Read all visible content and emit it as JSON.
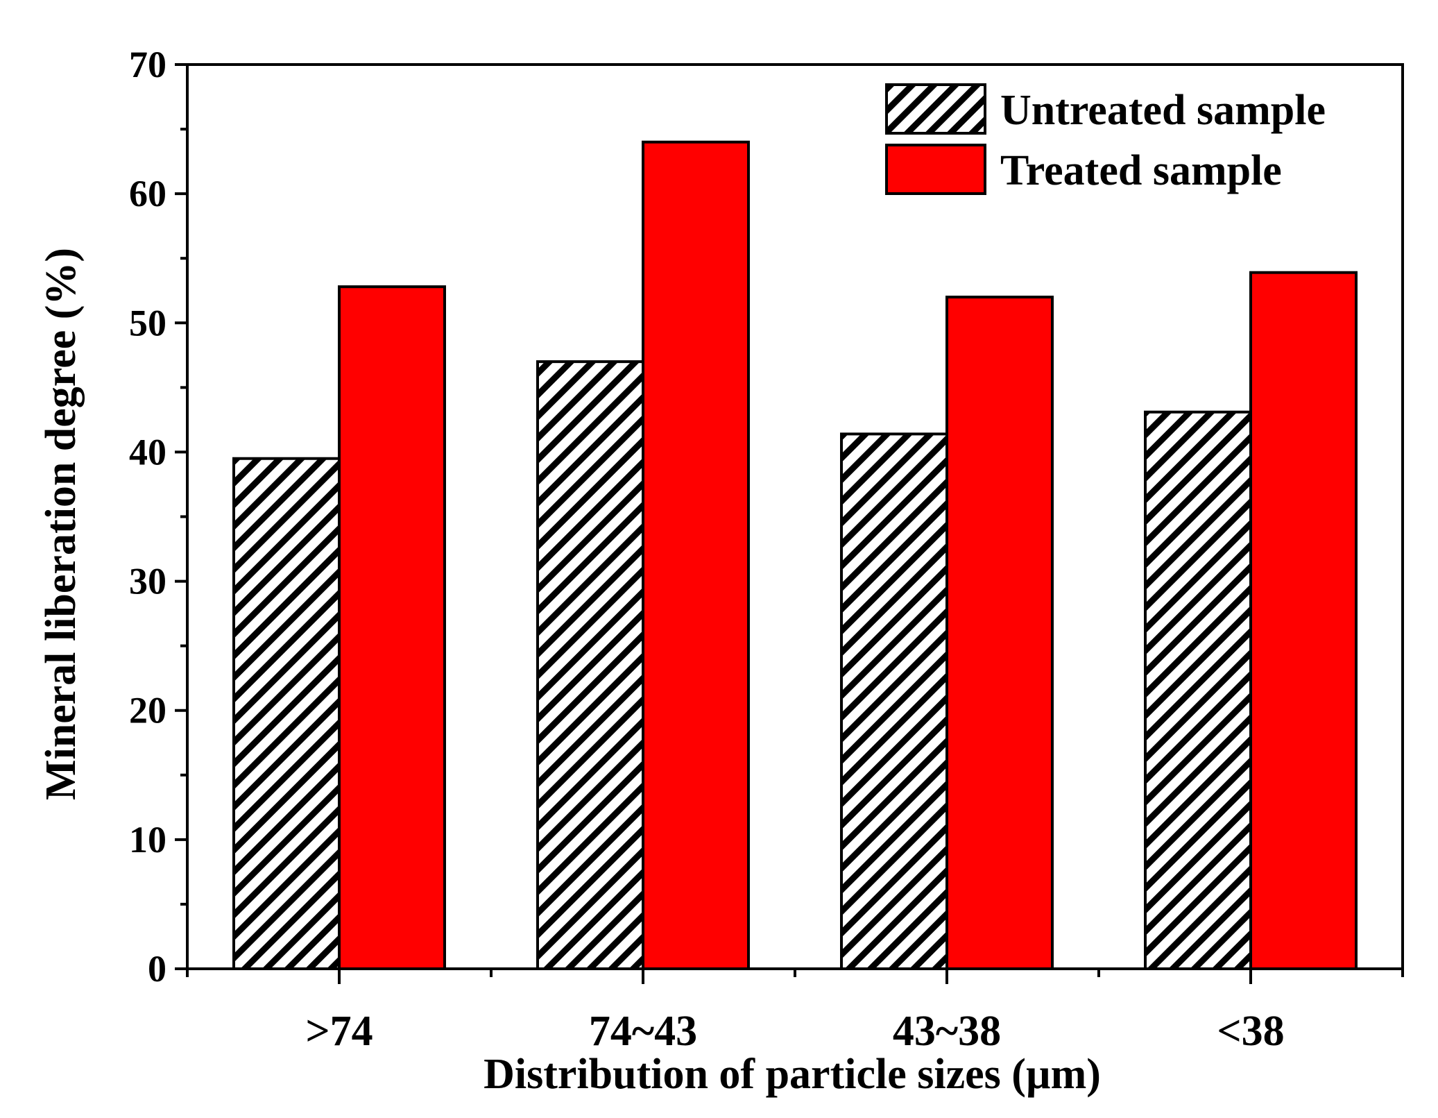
{
  "chart_data": {
    "type": "bar",
    "title": "",
    "xlabel": "Distribution of particle sizes (µm)",
    "ylabel": "Mineral liberation degree (%)",
    "categories": [
      ">74",
      "74~43",
      "43~38",
      "<38"
    ],
    "ylim": [
      0,
      70
    ],
    "yticks": [
      0,
      10,
      20,
      30,
      40,
      50,
      60,
      70
    ],
    "grid": false,
    "legend_position": "top-right",
    "series": [
      {
        "name": "Untreated sample",
        "values": [
          39.5,
          47.0,
          41.4,
          43.1
        ],
        "fill": "hatched",
        "color": "#000000"
      },
      {
        "name": "Treated sample",
        "values": [
          52.8,
          64.0,
          52.0,
          53.9
        ],
        "fill": "solid",
        "color": "#ff0000"
      }
    ]
  }
}
